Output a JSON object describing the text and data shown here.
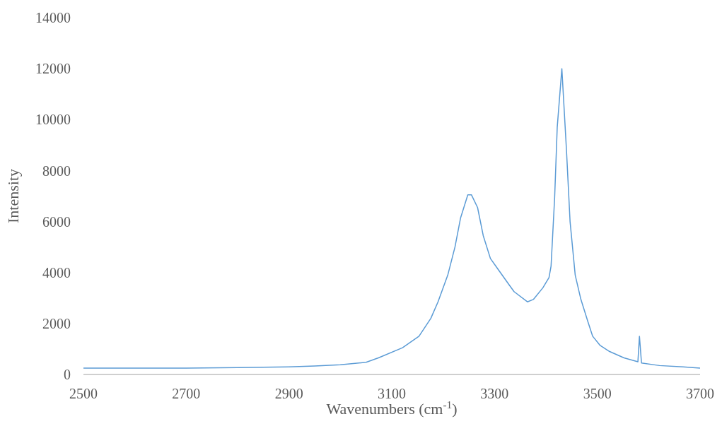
{
  "chart_data": {
    "type": "line",
    "xlabel": "Wavenumbers (cm$^{-1}$)",
    "ylabel": "Intensity",
    "x": [
      2500,
      2600,
      2700,
      2800,
      2900,
      2950,
      3000,
      3050,
      3074,
      3121,
      3153,
      3176,
      3190,
      3209,
      3223,
      3234,
      3248,
      3255,
      3267,
      3278,
      3292,
      3306,
      3329,
      3338,
      3364,
      3376,
      3394,
      3406,
      3410,
      3417,
      3422,
      3431,
      3440,
      3447,
      3457,
      3468,
      3482,
      3491,
      3505,
      3524,
      3552,
      3579,
      3582,
      3586,
      3621,
      3667,
      3700
    ],
    "series": [
      {
        "color": "#5b9bd5",
        "values": [
          250,
          250,
          250,
          270,
          300,
          330,
          380,
          480,
          650,
          1050,
          1500,
          2200,
          2850,
          3900,
          5000,
          6150,
          7050,
          7050,
          6550,
          5450,
          4550,
          4150,
          3500,
          3250,
          2850,
          2950,
          3400,
          3800,
          4250,
          6950,
          9700,
          12000,
          8800,
          6000,
          3900,
          2950,
          2050,
          1500,
          1150,
          900,
          650,
          500,
          1500,
          450,
          350,
          300,
          250
        ]
      }
    ],
    "xlim": [
      2500,
      3700
    ],
    "xticks": [
      2500,
      2700,
      2900,
      3100,
      3300,
      3500,
      3700
    ],
    "ylim": [
      0,
      14000
    ],
    "yticks": [
      0,
      2000,
      4000,
      6000,
      8000,
      10000,
      12000,
      14000
    ],
    "grid": false,
    "marker": "none",
    "line_style": "solid"
  }
}
